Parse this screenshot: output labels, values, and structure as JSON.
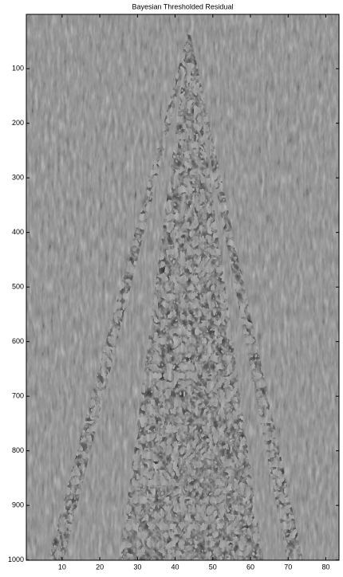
{
  "chart_data": {
    "type": "image",
    "title": "Bayesian Thresholded Residual",
    "xlim": [
      0.5,
      83.5
    ],
    "xticks": [
      10,
      20,
      30,
      40,
      50,
      60,
      70,
      80
    ],
    "ylim": [
      0.5,
      1000.5
    ],
    "yticks": [
      100,
      200,
      300,
      400,
      500,
      600,
      700,
      800,
      900,
      1000
    ],
    "y_reversed": true
  }
}
